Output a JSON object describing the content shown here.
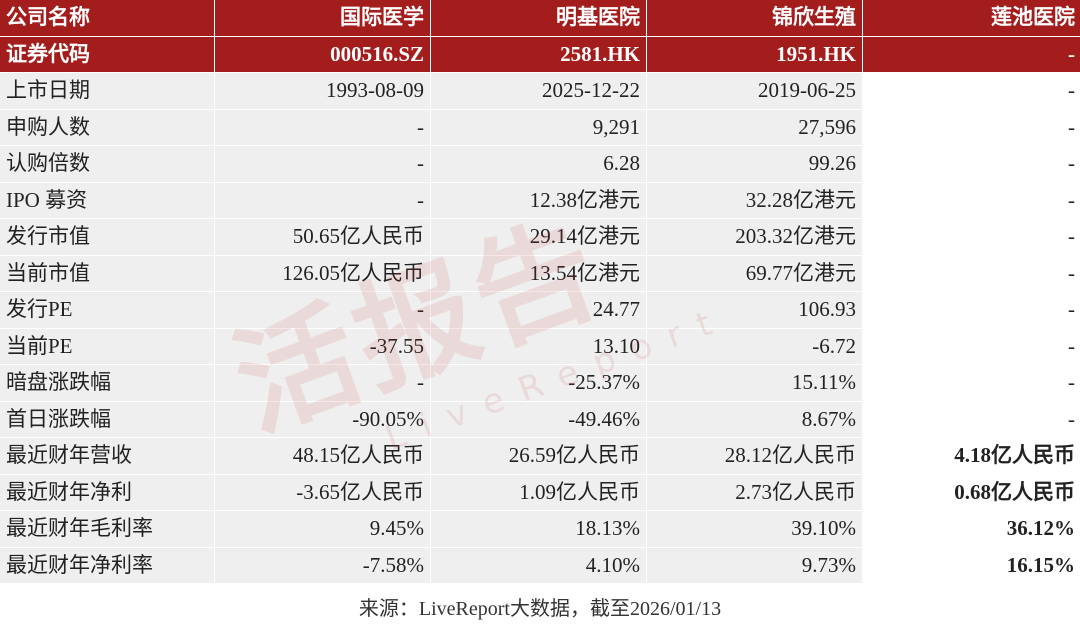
{
  "table": {
    "header": [
      [
        "公司名称",
        "国际医学",
        "明基医院",
        "锦欣生殖",
        "莲池医院"
      ],
      [
        "证券代码",
        "000516.SZ",
        "2581.HK",
        "1951.HK",
        "-"
      ]
    ],
    "rows": [
      [
        "上市日期",
        "1993-08-09",
        "2025-12-22",
        "2019-06-25",
        "-"
      ],
      [
        "申购人数",
        "-",
        "9,291",
        "27,596",
        "-"
      ],
      [
        "认购倍数",
        "-",
        "6.28",
        "99.26",
        "-"
      ],
      [
        "IPO 募资",
        "-",
        "12.38亿港元",
        "32.28亿港元",
        "-"
      ],
      [
        "发行市值",
        "50.65亿人民币",
        "29.14亿港元",
        "203.32亿港元",
        "-"
      ],
      [
        "当前市值",
        "126.05亿人民币",
        "13.54亿港元",
        "69.77亿港元",
        "-"
      ],
      [
        "发行PE",
        "-",
        "24.77",
        "106.93",
        "-"
      ],
      [
        "当前PE",
        "-37.55",
        "13.10",
        "-6.72",
        "-"
      ],
      [
        "暗盘涨跌幅",
        "-",
        "-25.37%",
        "15.11%",
        "-"
      ],
      [
        "首日涨跌幅",
        "-90.05%",
        "-49.46%",
        "8.67%",
        "-"
      ],
      [
        "最近财年营收",
        "48.15亿人民币",
        "26.59亿人民币",
        "28.12亿人民币",
        "4.18亿人民币"
      ],
      [
        "最近财年净利",
        "-3.65亿人民币",
        "1.09亿人民币",
        "2.73亿人民币",
        "0.68亿人民币"
      ],
      [
        "最近财年毛利率",
        "9.45%",
        "18.13%",
        "39.10%",
        "36.12%"
      ],
      [
        "最近财年净利率",
        "-7.58%",
        "4.10%",
        "9.73%",
        "16.15%"
      ]
    ]
  },
  "watermark": {
    "logo": "活报告",
    "brand": "LiveReport"
  },
  "source": "来源：LiveReport大数据，截至2026/01/13"
}
